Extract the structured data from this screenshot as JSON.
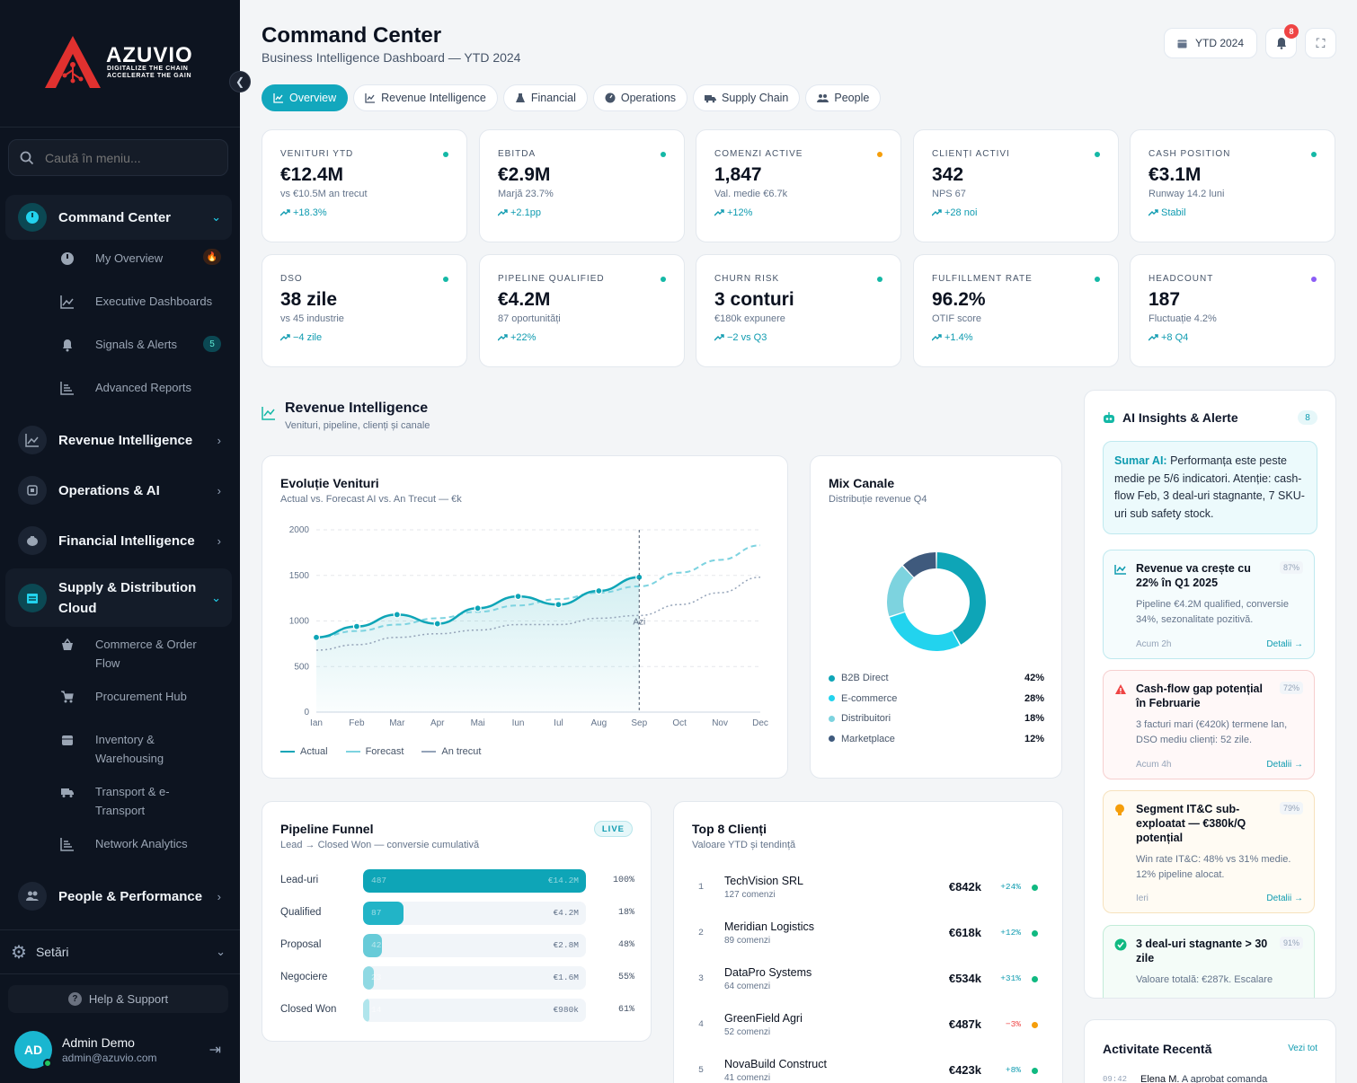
{
  "brand": {
    "name": "AZUVIO",
    "tagline1": "DIGITALIZE THE CHAIN",
    "tagline2": "ACCELERATE THE GAIN"
  },
  "sidebar": {
    "search_placeholder": "Caută în meniu...",
    "groups": [
      {
        "label": "Command Center",
        "expanded": true
      },
      {
        "label": "Revenue Intelligence"
      },
      {
        "label": "Operations & AI"
      },
      {
        "label": "Financial Intelligence"
      },
      {
        "label": "Supply & Distribution Cloud",
        "label_line1": "Supply & Distribution",
        "label_line2": "Cloud",
        "expanded": true
      },
      {
        "label": "People & Performance"
      }
    ],
    "command_items": [
      {
        "label": "My Overview",
        "badge": "🔥"
      },
      {
        "label": "Executive Dashboards"
      },
      {
        "label": "Signals & Alerts",
        "badge": "5"
      },
      {
        "label": "Advanced Reports"
      }
    ],
    "supply_items": [
      {
        "line1": "Commerce & Order",
        "line2": "Flow"
      },
      {
        "line1": "Procurement Hub",
        "line2": ""
      },
      {
        "line1": "Inventory &",
        "line2": "Warehousing"
      },
      {
        "line1": "Transport & e-",
        "line2": "Transport"
      },
      {
        "line1": "Network Analytics",
        "line2": ""
      }
    ],
    "settings": "Setări",
    "help": "Help & Support",
    "user": {
      "initials": "AD",
      "name": "Admin Demo",
      "email": "admin@azuvio.com"
    }
  },
  "header": {
    "title": "Command Center",
    "subtitle": "Business Intelligence Dashboard — YTD 2024",
    "period": "YTD 2024",
    "notifications": "8"
  },
  "tabs": [
    "Overview",
    "Revenue Intelligence",
    "Financial",
    "Operations",
    "Supply Chain",
    "People"
  ],
  "kpis": [
    {
      "label": "VENITURI YTD",
      "value": "€12.4M",
      "sub": "vs €10.5M an trecut",
      "change": "+18.3%",
      "dot": "#14b8a6"
    },
    {
      "label": "EBITDA",
      "value": "€2.9M",
      "sub": "Marjă 23.7%",
      "change": "+2.1pp",
      "dot": "#14b8a6"
    },
    {
      "label": "COMENZI ACTIVE",
      "value": "1,847",
      "sub": "Val. medie €6.7k",
      "change": "+12%",
      "dot": "#f59e0b"
    },
    {
      "label": "CLIENȚI ACTIVI",
      "value": "342",
      "sub": "NPS 67",
      "change": "+28 noi",
      "dot": "#14b8a6"
    },
    {
      "label": "CASH POSITION",
      "value": "€3.1M",
      "sub": "Runway 14.2 luni",
      "change": "Stabil",
      "dot": "#14b8a6"
    },
    {
      "label": "DSO",
      "value": "38 zile",
      "sub": "vs 45 industrie",
      "change": "−4 zile",
      "dot": "#14b8a6"
    },
    {
      "label": "PIPELINE QUALIFIED",
      "value": "€4.2M",
      "sub": "87 oportunități",
      "change": "+22%",
      "dot": "#14b8a6"
    },
    {
      "label": "CHURN RISK",
      "value": "3 conturi",
      "sub": "€180k expunere",
      "change": "−2 vs Q3",
      "dot": "#14b8a6"
    },
    {
      "label": "FULFILLMENT RATE",
      "value": "96.2%",
      "sub": "OTIF score",
      "change": "+1.4%",
      "dot": "#14b8a6"
    },
    {
      "label": "HEADCOUNT",
      "value": "187",
      "sub": "Fluctuație 4.2%",
      "change": "+8 Q4",
      "dot": "#8b5cf6"
    }
  ],
  "section": {
    "title": "Revenue Intelligence",
    "subtitle": "Venituri, pipeline, clienți și canale"
  },
  "revenue_chart": {
    "title": "Evoluție Venituri",
    "subtitle": "Actual vs. Forecast AI vs. An Trecut — €k",
    "today_label": "Azi",
    "legend": [
      "Actual",
      "Forecast",
      "An trecut"
    ]
  },
  "chart_data": [
    {
      "type": "line",
      "title": "Evoluție Venituri",
      "x": [
        "Ian",
        "Feb",
        "Mar",
        "Apr",
        "Mai",
        "Iun",
        "Iul",
        "Aug",
        "Sep",
        "Oct",
        "Nov",
        "Dec"
      ],
      "ylim": [
        0,
        2000
      ],
      "yticks": [
        0,
        500,
        1000,
        1500,
        2000
      ],
      "series": [
        {
          "name": "Actual",
          "values": [
            820,
            940,
            1070,
            970,
            1140,
            1270,
            1180,
            1330,
            1480,
            null,
            null,
            null
          ],
          "color": "#0ea5b7"
        },
        {
          "name": "Forecast",
          "values": [
            820,
            890,
            960,
            1030,
            1100,
            1170,
            1240,
            1310,
            1380,
            1530,
            1670,
            1830
          ],
          "color": "#7dd3e0"
        },
        {
          "name": "An trecut",
          "values": [
            680,
            740,
            820,
            860,
            900,
            960,
            960,
            1030,
            1060,
            1180,
            1310,
            1480
          ],
          "color": "#94a3b8"
        }
      ]
    },
    {
      "type": "pie",
      "title": "Mix Canale",
      "subtitle": "Distribuție revenue Q4",
      "categories": [
        "B2B Direct",
        "E-commerce",
        "Distribuitori",
        "Marketplace"
      ],
      "values": [
        42,
        28,
        18,
        12
      ],
      "labels": [
        "42%",
        "28%",
        "18%",
        "12%"
      ],
      "colors": [
        "#0ea5b7",
        "#22d3ee",
        "#7dd3df",
        "#3f5a7d"
      ]
    }
  ],
  "funnel": {
    "title": "Pipeline Funnel",
    "subtitle": "Lead → Closed Won — conversie cumulativă",
    "badge": "LIVE",
    "rows": [
      {
        "label": "Lead-uri",
        "count": "487",
        "value": "€14.2M",
        "pct": "100%",
        "fill": 1.0,
        "color": "#0ea5b7"
      },
      {
        "label": "Qualified",
        "count": "87",
        "value": "€4.2M",
        "pct": "18%",
        "fill": 0.18,
        "color": "#22b4c7"
      },
      {
        "label": "Proposal",
        "count": "42",
        "value": "€2.8M",
        "pct": "48%",
        "fill": 0.086,
        "color": "#67cbd8"
      },
      {
        "label": "Negociere",
        "count": "23",
        "value": "€1.6M",
        "pct": "55%",
        "fill": 0.047,
        "color": "#8fd9e3"
      },
      {
        "label": "Closed Won",
        "count": "14",
        "value": "€980k",
        "pct": "61%",
        "fill": 0.029,
        "color": "#b0e5ec"
      }
    ]
  },
  "clients": {
    "title": "Top 8 Clienți",
    "subtitle": "Valoare YTD și tendință",
    "rows": [
      {
        "rank": "1",
        "name": "TechVision SRL",
        "orders": "127 comenzi",
        "value": "€842k",
        "trend": "+24%",
        "up": true
      },
      {
        "rank": "2",
        "name": "Meridian Logistics",
        "orders": "89 comenzi",
        "value": "€618k",
        "trend": "+12%",
        "up": true
      },
      {
        "rank": "3",
        "name": "DataPro Systems",
        "orders": "64 comenzi",
        "value": "€534k",
        "trend": "+31%",
        "up": true
      },
      {
        "rank": "4",
        "name": "GreenField Agri",
        "orders": "52 comenzi",
        "value": "€487k",
        "trend": "−3%",
        "up": false
      },
      {
        "rank": "5",
        "name": "NovaBuild Construct",
        "orders": "41 comenzi",
        "value": "€423k",
        "trend": "+8%",
        "up": true
      }
    ]
  },
  "insights": {
    "title": "AI Insights & Alerte",
    "count": "8",
    "summary_label": "Sumar AI:",
    "summary_text": "Performanța este peste medie pe 5/6 indicatori. Atenție: cash-flow Feb, 3 deal-uri stagnante, 7 SKU-uri sub safety stock.",
    "items": [
      {
        "title": "Revenue va crește cu 22% în Q1 2025",
        "text": "Pipeline €4.2M qualified, conversie 34%, sezonalitate pozitivă.",
        "pct": "87%",
        "time": "Acum 2h",
        "link": "Detalii →"
      },
      {
        "title": "Cash-flow gap potențial în Februarie",
        "text": "3 facturi mari (€420k) termene lan, DSO mediu clienți: 52 zile.",
        "pct": "72%",
        "time": "Acum 4h",
        "link": "Detalii →"
      },
      {
        "title": "Segment IT&C sub-exploatat — €380k/Q potențial",
        "text": "Win rate IT&C: 48% vs 31% medie. 12% pipeline alocat.",
        "pct": "79%",
        "time": "Ieri",
        "link": "Detalii →"
      },
      {
        "title": "3 deal-uri stagnante > 30 zile",
        "text": "Valoare totală: €287k. Escalare",
        "pct": "91%",
        "time": "",
        "link": ""
      }
    ]
  },
  "activity": {
    "title": "Activitate Recentă",
    "link": "Vezi tot",
    "first_time": "09:42",
    "first_name": "Elena M.",
    "first_text": "A aprobat comanda"
  }
}
